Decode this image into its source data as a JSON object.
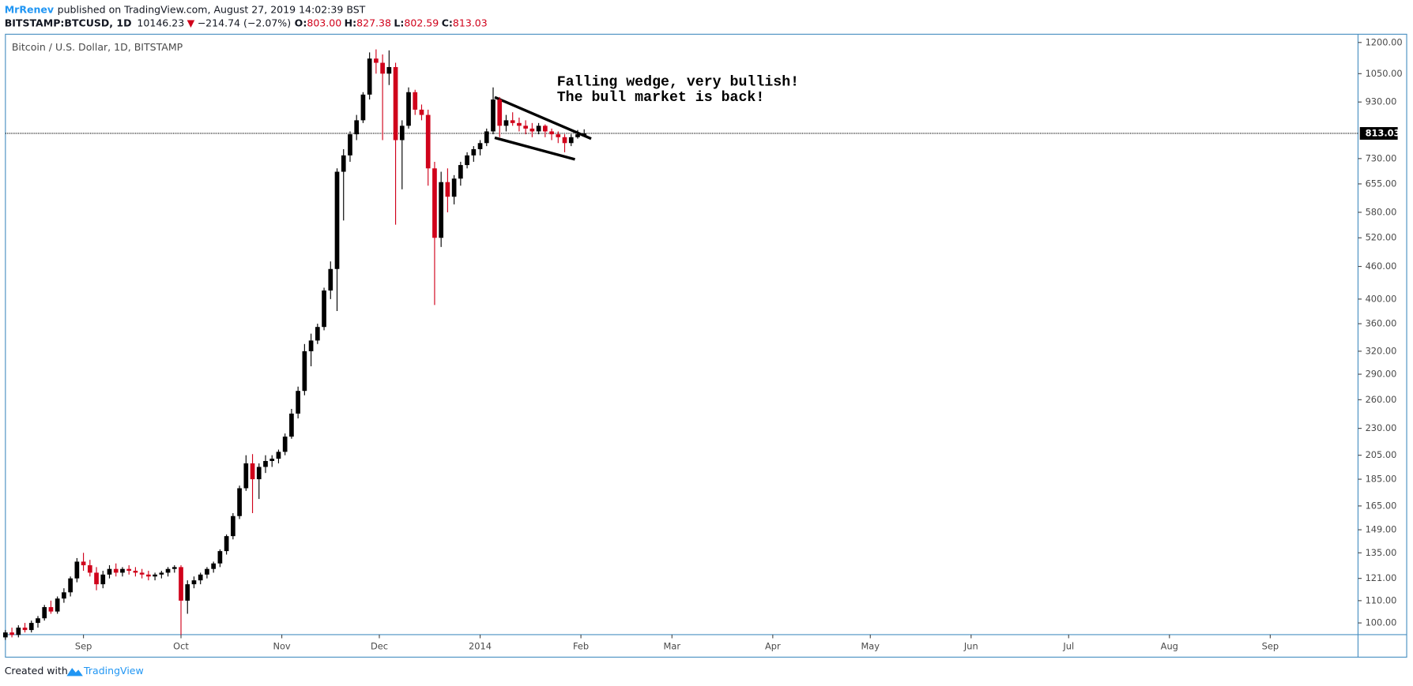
{
  "header": {
    "author": "MrRenev",
    "published": "published on TradingView.com, August 27, 2019 14:02:39 BST",
    "symbol": "BITSTAMP:BTCUSD, 1D",
    "last": "10146.23",
    "arrow": "▼",
    "change": "−214.74 (−2.07%)",
    "o_label": "O:",
    "o": "803.00",
    "h_label": "H:",
    "h": "827.38",
    "l_label": "L:",
    "l": "802.59",
    "c_label": "C:",
    "c": "813.03"
  },
  "footer": {
    "created": "Created with",
    "brand": "TradingView"
  },
  "chart_data": {
    "type": "candlestick",
    "title": "Bitcoin / U.S. Dollar, 1D, BITSTAMP",
    "annotations": [
      "Falling wedge, very bullish!",
      "The bull market is back!"
    ],
    "log_scale": true,
    "up_color": "#000000",
    "down_color": "#d0021b",
    "last_price": 813.03,
    "xlim": [
      "2013-08-08",
      "2014-09-28"
    ],
    "xticks": [
      {
        "value": "2013-09-01",
        "label": "Sep"
      },
      {
        "value": "2013-10-01",
        "label": "Oct"
      },
      {
        "value": "2013-11-01",
        "label": "Nov"
      },
      {
        "value": "2013-12-01",
        "label": "Dec"
      },
      {
        "value": "2014-01-01",
        "label": "2014"
      },
      {
        "value": "2014-02-01",
        "label": "Feb"
      },
      {
        "value": "2014-03-01",
        "label": "Mar"
      },
      {
        "value": "2014-04-01",
        "label": "Apr"
      },
      {
        "value": "2014-05-01",
        "label": "May"
      },
      {
        "value": "2014-06-01",
        "label": "Jun"
      },
      {
        "value": "2014-07-01",
        "label": "Jul"
      },
      {
        "value": "2014-08-01",
        "label": "Aug"
      },
      {
        "value": "2014-09-01",
        "label": "Sep"
      }
    ],
    "ylim": [
      95.1,
      1243
    ],
    "yticks": [
      {
        "value": 100,
        "label": "100.00"
      },
      {
        "value": 110,
        "label": "110.00"
      },
      {
        "value": 121,
        "label": "121.00"
      },
      {
        "value": 135,
        "label": "135.00"
      },
      {
        "value": 149,
        "label": "149.00"
      },
      {
        "value": 165,
        "label": "165.00"
      },
      {
        "value": 185,
        "label": "185.00"
      },
      {
        "value": 205,
        "label": "205.00"
      },
      {
        "value": 230,
        "label": "230.00"
      },
      {
        "value": 260,
        "label": "260.00"
      },
      {
        "value": 290,
        "label": "290.00"
      },
      {
        "value": 320,
        "label": "320.00"
      },
      {
        "value": 360,
        "label": "360.00"
      },
      {
        "value": 400,
        "label": "400.00"
      },
      {
        "value": 460,
        "label": "460.00"
      },
      {
        "value": 520,
        "label": "520.00"
      },
      {
        "value": 580,
        "label": "580.00"
      },
      {
        "value": 655,
        "label": "655.00"
      },
      {
        "value": 730,
        "label": "730.00"
      },
      {
        "value": 930,
        "label": "930.00"
      },
      {
        "value": 1050,
        "label": "1050.00"
      },
      {
        "value": 1200,
        "label": "1200.00"
      }
    ],
    "x": [
      "2013-08-08",
      "2013-08-10",
      "2013-08-12",
      "2013-08-14",
      "2013-08-16",
      "2013-08-18",
      "2013-08-20",
      "2013-08-22",
      "2013-08-24",
      "2013-08-26",
      "2013-08-28",
      "2013-08-30",
      "2013-09-01",
      "2013-09-03",
      "2013-09-05",
      "2013-09-07",
      "2013-09-09",
      "2013-09-11",
      "2013-09-13",
      "2013-09-15",
      "2013-09-17",
      "2013-09-19",
      "2013-09-21",
      "2013-09-23",
      "2013-09-25",
      "2013-09-27",
      "2013-09-29",
      "2013-10-01",
      "2013-10-03",
      "2013-10-05",
      "2013-10-07",
      "2013-10-09",
      "2013-10-11",
      "2013-10-13",
      "2013-10-15",
      "2013-10-17",
      "2013-10-19",
      "2013-10-21",
      "2013-10-23",
      "2013-10-25",
      "2013-10-27",
      "2013-10-29",
      "2013-10-31",
      "2013-11-02",
      "2013-11-04",
      "2013-11-06",
      "2013-11-08",
      "2013-11-10",
      "2013-11-12",
      "2013-11-14",
      "2013-11-16",
      "2013-11-18",
      "2013-11-20",
      "2013-11-22",
      "2013-11-24",
      "2013-11-26",
      "2013-11-28",
      "2013-11-30",
      "2013-12-02",
      "2013-12-04",
      "2013-12-06",
      "2013-12-08",
      "2013-12-10",
      "2013-12-12",
      "2013-12-14",
      "2013-12-16",
      "2013-12-18",
      "2013-12-20",
      "2013-12-22",
      "2013-12-24",
      "2013-12-26",
      "2013-12-28",
      "2013-12-30",
      "2014-01-01",
      "2014-01-03",
      "2014-01-05",
      "2014-01-07",
      "2014-01-09",
      "2014-01-11",
      "2014-01-13",
      "2014-01-15",
      "2014-01-17",
      "2014-01-19",
      "2014-01-21",
      "2014-01-23",
      "2014-01-25",
      "2014-01-27",
      "2014-01-29",
      "2014-01-31",
      "2014-02-02"
    ],
    "open": [
      94,
      96,
      95,
      98,
      97,
      100,
      102,
      107,
      105,
      111,
      114,
      121,
      130,
      128,
      124,
      118,
      123,
      126,
      124,
      126,
      125,
      124,
      123,
      122,
      123,
      124,
      126,
      127,
      110,
      118,
      120,
      123,
      126,
      129,
      136,
      145,
      158,
      178,
      198,
      185,
      195,
      200,
      202,
      208,
      222,
      245,
      270,
      320,
      335,
      355,
      415,
      455,
      690,
      740,
      810,
      860,
      960,
      1120,
      1100,
      1050,
      1080,
      790,
      840,
      970,
      900,
      880,
      700,
      520,
      660,
      620,
      670,
      710,
      740,
      760,
      780,
      820,
      940,
      840,
      860,
      850,
      840,
      830,
      820,
      840,
      820,
      810,
      800,
      780,
      800,
      803
    ],
    "high": [
      97,
      98,
      99,
      100,
      101,
      103,
      108,
      110,
      112,
      116,
      122,
      132,
      135,
      131,
      127,
      125,
      128,
      129,
      127,
      128,
      127,
      126,
      125,
      124,
      125,
      127,
      128,
      128,
      120,
      122,
      124,
      127,
      130,
      137,
      146,
      160,
      180,
      205,
      206,
      198,
      205,
      205,
      210,
      225,
      250,
      275,
      330,
      345,
      360,
      420,
      470,
      700,
      760,
      820,
      880,
      970,
      1150,
      1165,
      1140,
      1160,
      1100,
      860,
      990,
      980,
      920,
      900,
      720,
      690,
      700,
      680,
      720,
      750,
      770,
      790,
      830,
      990,
      950,
      880,
      890,
      870,
      860,
      850,
      850,
      845,
      830,
      820,
      810,
      810,
      825,
      827.38
    ],
    "low": [
      93,
      94,
      94,
      96,
      96,
      98,
      101,
      104,
      104,
      109,
      112,
      119,
      125,
      122,
      115,
      116,
      121,
      122,
      122,
      123,
      122,
      121,
      120,
      120,
      121,
      122,
      124,
      95,
      104,
      116,
      118,
      121,
      124,
      127,
      134,
      143,
      156,
      176,
      160,
      170,
      190,
      195,
      198,
      205,
      220,
      240,
      265,
      300,
      330,
      350,
      400,
      380,
      560,
      720,
      790,
      850,
      940,
      1050,
      790,
      1000,
      550,
      640,
      830,
      880,
      860,
      650,
      390,
      500,
      580,
      600,
      650,
      700,
      720,
      740,
      770,
      810,
      800,
      820,
      840,
      820,
      810,
      800,
      810,
      800,
      790,
      780,
      750,
      770,
      795,
      802.59
    ],
    "close": [
      96,
      95,
      98,
      97,
      100,
      102,
      107,
      105,
      111,
      114,
      121,
      130,
      128,
      124,
      118,
      123,
      126,
      124,
      126,
      125,
      124,
      123,
      122,
      123,
      124,
      126,
      127,
      110,
      118,
      120,
      123,
      126,
      129,
      136,
      145,
      158,
      178,
      198,
      185,
      195,
      200,
      202,
      208,
      222,
      245,
      270,
      320,
      335,
      355,
      415,
      455,
      690,
      740,
      810,
      860,
      960,
      1120,
      1100,
      1050,
      1080,
      790,
      840,
      970,
      900,
      880,
      700,
      520,
      660,
      620,
      670,
      710,
      740,
      760,
      780,
      820,
      940,
      840,
      860,
      850,
      840,
      830,
      820,
      840,
      820,
      810,
      800,
      780,
      800,
      810,
      813.03
    ]
  }
}
